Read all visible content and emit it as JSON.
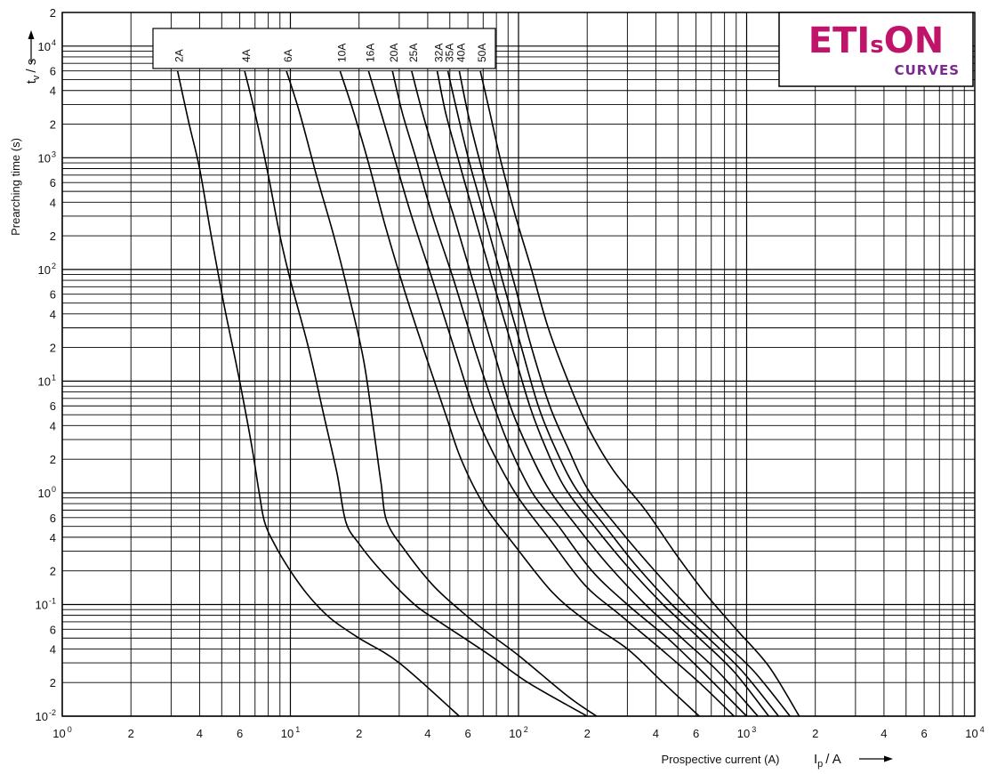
{
  "logo": {
    "brand_left": "ETI",
    "brand_small": "s",
    "brand_right": "ON",
    "sub": "CURVES",
    "brand_color": "#c0136a",
    "sub_color": "#7a2a8a"
  },
  "chart_data": {
    "type": "line",
    "title": "",
    "xlabel": "Prospective current (A)",
    "ylabel": "Prearching time (s)",
    "x_unit_label": "I",
    "x_unit_sub": "p",
    "x_unit_rest": "/ A",
    "y_unit_label": "t",
    "y_unit_sub": "v",
    "y_unit_rest": "/ s",
    "xscale": "log",
    "yscale": "log",
    "xlim": [
      1,
      10000
    ],
    "ylim": [
      0.01,
      20000
    ],
    "grid": true,
    "x_tick_labels": [
      {
        "v": 1,
        "base": "10",
        "exp": "0"
      },
      {
        "v": 2,
        "base": "2",
        "exp": ""
      },
      {
        "v": 4,
        "base": "4",
        "exp": ""
      },
      {
        "v": 6,
        "base": "6",
        "exp": ""
      },
      {
        "v": 10,
        "base": "10",
        "exp": "1"
      },
      {
        "v": 20,
        "base": "2",
        "exp": ""
      },
      {
        "v": 40,
        "base": "4",
        "exp": ""
      },
      {
        "v": 60,
        "base": "6",
        "exp": ""
      },
      {
        "v": 100,
        "base": "10",
        "exp": "2"
      },
      {
        "v": 200,
        "base": "2",
        "exp": ""
      },
      {
        "v": 400,
        "base": "4",
        "exp": ""
      },
      {
        "v": 600,
        "base": "6",
        "exp": ""
      },
      {
        "v": 1000,
        "base": "10",
        "exp": "3"
      },
      {
        "v": 2000,
        "base": "2",
        "exp": ""
      },
      {
        "v": 4000,
        "base": "4",
        "exp": ""
      },
      {
        "v": 6000,
        "base": "6",
        "exp": ""
      },
      {
        "v": 10000,
        "base": "10",
        "exp": "4"
      }
    ],
    "y_tick_labels": [
      {
        "v": 0.01,
        "base": "10",
        "exp": "-2"
      },
      {
        "v": 0.02,
        "base": "2",
        "exp": ""
      },
      {
        "v": 0.04,
        "base": "4",
        "exp": ""
      },
      {
        "v": 0.06,
        "base": "6",
        "exp": ""
      },
      {
        "v": 0.1,
        "base": "10",
        "exp": "-1"
      },
      {
        "v": 0.2,
        "base": "2",
        "exp": ""
      },
      {
        "v": 0.4,
        "base": "4",
        "exp": ""
      },
      {
        "v": 0.6,
        "base": "6",
        "exp": ""
      },
      {
        "v": 1,
        "base": "10",
        "exp": "0"
      },
      {
        "v": 2,
        "base": "2",
        "exp": ""
      },
      {
        "v": 4,
        "base": "4",
        "exp": ""
      },
      {
        "v": 6,
        "base": "6",
        "exp": ""
      },
      {
        "v": 10,
        "base": "10",
        "exp": "1"
      },
      {
        "v": 20,
        "base": "2",
        "exp": ""
      },
      {
        "v": 40,
        "base": "4",
        "exp": ""
      },
      {
        "v": 60,
        "base": "6",
        "exp": ""
      },
      {
        "v": 100,
        "base": "10",
        "exp": "2"
      },
      {
        "v": 200,
        "base": "2",
        "exp": ""
      },
      {
        "v": 400,
        "base": "4",
        "exp": ""
      },
      {
        "v": 600,
        "base": "6",
        "exp": ""
      },
      {
        "v": 1000,
        "base": "10",
        "exp": "3"
      },
      {
        "v": 2000,
        "base": "2",
        "exp": ""
      },
      {
        "v": 4000,
        "base": "4",
        "exp": ""
      },
      {
        "v": 6000,
        "base": "6",
        "exp": ""
      },
      {
        "v": 10000,
        "base": "10",
        "exp": "4"
      },
      {
        "v": 20000,
        "base": "2",
        "exp": ""
      }
    ],
    "series": [
      {
        "name": "2A",
        "points": [
          [
            3.2,
            6000
          ],
          [
            3.6,
            2000
          ],
          [
            4.0,
            800
          ],
          [
            4.5,
            200
          ],
          [
            5.1,
            50
          ],
          [
            5.8,
            14
          ],
          [
            6.2,
            7
          ],
          [
            6.8,
            2.5
          ],
          [
            7.3,
            1.0
          ],
          [
            7.7,
            0.55
          ],
          [
            8.5,
            0.35
          ],
          [
            10,
            0.2
          ],
          [
            12,
            0.12
          ],
          [
            15,
            0.075
          ],
          [
            20,
            0.05
          ],
          [
            30,
            0.03
          ],
          [
            55,
            0.01
          ]
        ]
      },
      {
        "name": "4A",
        "points": [
          [
            6.3,
            6000
          ],
          [
            7.0,
            2500
          ],
          [
            8.0,
            700
          ],
          [
            9.0,
            200
          ],
          [
            10,
            80
          ],
          [
            12,
            20
          ],
          [
            14,
            5
          ],
          [
            16,
            1.5
          ],
          [
            17.5,
            0.55
          ],
          [
            20,
            0.35
          ],
          [
            25,
            0.2
          ],
          [
            35,
            0.1
          ],
          [
            45,
            0.07
          ],
          [
            75,
            0.035
          ],
          [
            110,
            0.02
          ],
          [
            200,
            0.01
          ]
        ]
      },
      {
        "name": "6A",
        "points": [
          [
            9.6,
            6000
          ],
          [
            11,
            2500
          ],
          [
            13,
            700
          ],
          [
            15.5,
            200
          ],
          [
            18,
            60
          ],
          [
            21,
            15
          ],
          [
            23.5,
            3
          ],
          [
            25,
            1.2
          ],
          [
            26.5,
            0.55
          ],
          [
            32,
            0.3
          ],
          [
            42,
            0.15
          ],
          [
            55,
            0.09
          ],
          [
            70,
            0.06
          ],
          [
            100,
            0.035
          ],
          [
            165,
            0.015
          ],
          [
            220,
            0.01
          ]
        ]
      },
      {
        "name": "10A",
        "points": [
          [
            16.5,
            6000
          ],
          [
            19,
            2500
          ],
          [
            22,
            900
          ],
          [
            26,
            250
          ],
          [
            32,
            60
          ],
          [
            40,
            15
          ],
          [
            48,
            5
          ],
          [
            56,
            2
          ],
          [
            70,
            0.8
          ],
          [
            95,
            0.35
          ],
          [
            140,
            0.13
          ],
          [
            200,
            0.07
          ],
          [
            300,
            0.04
          ],
          [
            430,
            0.02
          ],
          [
            620,
            0.01
          ]
        ]
      },
      {
        "name": "16A",
        "points": [
          [
            22,
            6000
          ],
          [
            25,
            2500
          ],
          [
            29,
            900
          ],
          [
            34,
            300
          ],
          [
            42,
            80
          ],
          [
            53,
            18
          ],
          [
            65,
            5
          ],
          [
            80,
            2
          ],
          [
            100,
            0.9
          ],
          [
            135,
            0.4
          ],
          [
            195,
            0.15
          ],
          [
            280,
            0.08
          ],
          [
            420,
            0.04
          ],
          [
            620,
            0.02
          ],
          [
            880,
            0.01
          ]
        ]
      },
      {
        "name": "20A",
        "points": [
          [
            28,
            6000
          ],
          [
            31,
            2500
          ],
          [
            36,
            900
          ],
          [
            42,
            300
          ],
          [
            52,
            80
          ],
          [
            64,
            20
          ],
          [
            78,
            6
          ],
          [
            92,
            2.5
          ],
          [
            115,
            1.0
          ],
          [
            150,
            0.5
          ],
          [
            210,
            0.2
          ],
          [
            300,
            0.1
          ],
          [
            450,
            0.05
          ],
          [
            640,
            0.025
          ],
          [
            1000,
            0.01
          ]
        ]
      },
      {
        "name": "25A",
        "points": [
          [
            34,
            6000
          ],
          [
            38,
            2500
          ],
          [
            44,
            900
          ],
          [
            52,
            300
          ],
          [
            63,
            80
          ],
          [
            77,
            20
          ],
          [
            92,
            6
          ],
          [
            110,
            2.5
          ],
          [
            135,
            1.1
          ],
          [
            180,
            0.5
          ],
          [
            250,
            0.22
          ],
          [
            360,
            0.1
          ],
          [
            520,
            0.05
          ],
          [
            750,
            0.025
          ],
          [
            1120,
            0.01
          ]
        ]
      },
      {
        "name": "32A",
        "points": [
          [
            44,
            6000
          ],
          [
            48,
            2500
          ],
          [
            55,
            900
          ],
          [
            64,
            300
          ],
          [
            77,
            80
          ],
          [
            94,
            20
          ],
          [
            112,
            6
          ],
          [
            132,
            2.5
          ],
          [
            160,
            1.1
          ],
          [
            215,
            0.5
          ],
          [
            300,
            0.22
          ],
          [
            430,
            0.1
          ],
          [
            620,
            0.05
          ],
          [
            880,
            0.025
          ],
          [
            1250,
            0.01
          ]
        ]
      },
      {
        "name": "35A",
        "points": [
          [
            49,
            6000
          ],
          [
            54,
            2500
          ],
          [
            61,
            900
          ],
          [
            71,
            300
          ],
          [
            85,
            80
          ],
          [
            103,
            20
          ],
          [
            122,
            6
          ],
          [
            145,
            2.5
          ],
          [
            178,
            1.1
          ],
          [
            240,
            0.5
          ],
          [
            330,
            0.22
          ],
          [
            470,
            0.1
          ],
          [
            680,
            0.05
          ],
          [
            960,
            0.025
          ],
          [
            1380,
            0.01
          ]
        ]
      },
      {
        "name": "40A",
        "points": [
          [
            55,
            6000
          ],
          [
            60,
            2500
          ],
          [
            68,
            900
          ],
          [
            79,
            300
          ],
          [
            95,
            80
          ],
          [
            114,
            20
          ],
          [
            137,
            6
          ],
          [
            165,
            2.5
          ],
          [
            200,
            1.1
          ],
          [
            270,
            0.5
          ],
          [
            380,
            0.22
          ],
          [
            540,
            0.1
          ],
          [
            760,
            0.05
          ],
          [
            1080,
            0.025
          ],
          [
            1550,
            0.01
          ]
        ]
      },
      {
        "name": "50A",
        "points": [
          [
            68,
            6000
          ],
          [
            75,
            2500
          ],
          [
            84,
            900
          ],
          [
            97,
            300
          ],
          [
            114,
            100
          ],
          [
            135,
            30
          ],
          [
            165,
            10
          ],
          [
            200,
            4
          ],
          [
            260,
            1.6
          ],
          [
            360,
            0.7
          ],
          [
            480,
            0.3
          ],
          [
            650,
            0.13
          ],
          [
            900,
            0.06
          ],
          [
            1250,
            0.028
          ],
          [
            1700,
            0.01
          ]
        ]
      }
    ]
  }
}
